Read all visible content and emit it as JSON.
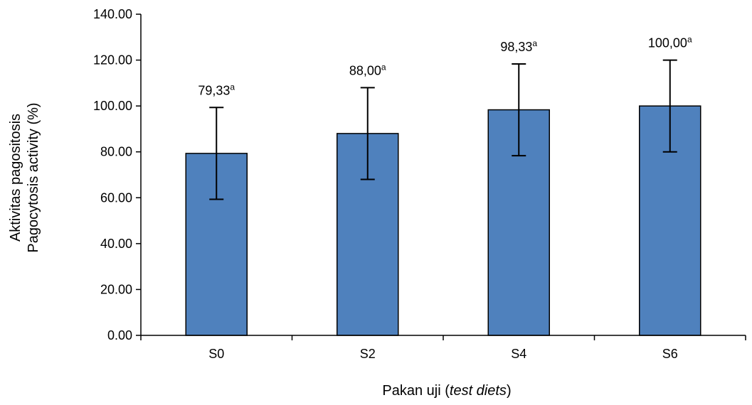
{
  "chart_data": {
    "type": "bar",
    "categories": [
      "S0",
      "S2",
      "S4",
      "S6"
    ],
    "values": [
      79.33,
      88.0,
      98.33,
      100.0
    ],
    "error": [
      20,
      20,
      20,
      20
    ],
    "data_labels": [
      "79,33",
      "88,00",
      "98,33",
      "100,00"
    ],
    "significance": [
      "a",
      "a",
      "a",
      "a"
    ],
    "yticks": [
      "0.00",
      "20.00",
      "40.00",
      "60.00",
      "80.00",
      "100.00",
      "120.00",
      "140.00"
    ],
    "ylim": [
      0,
      140
    ],
    "ylabel_line1": "Aktivitas pagositosis",
    "ylabel_line2": "Pagocytosis activity (%)",
    "xlabel_plain": "Pakan uji (",
    "xlabel_italic": "test diets",
    "xlabel_close": ")",
    "grid": false,
    "bar_color": "#4f81bd"
  }
}
